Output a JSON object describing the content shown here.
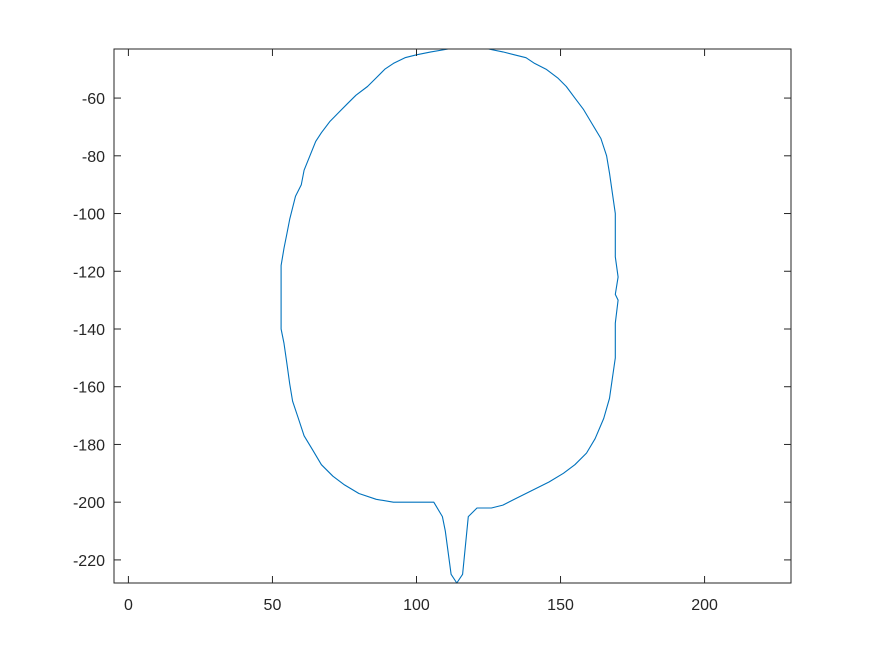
{
  "chart_data": {
    "type": "line",
    "title": "",
    "xlabel": "",
    "ylabel": "",
    "xlim": [
      -5,
      230
    ],
    "ylim": [
      -228,
      -43
    ],
    "xticks": [
      0,
      50,
      100,
      150,
      200
    ],
    "yticks": [
      -60,
      -80,
      -100,
      -120,
      -140,
      -160,
      -180,
      -200,
      -220
    ],
    "xtick_labels": [
      "0",
      "50",
      "100",
      "150",
      "200"
    ],
    "ytick_labels": [
      "-60",
      "-80",
      "-100",
      "-120",
      "-140",
      "-160",
      "-180",
      "-200",
      "-220"
    ],
    "grid": false,
    "box": true,
    "colors": {
      "line": "#0072BD",
      "axes": "#262626"
    },
    "series": [
      {
        "x": [
          111,
          105,
          100,
          96,
          92,
          89,
          86,
          83,
          79,
          76,
          73,
          70,
          67,
          65,
          63,
          61,
          60,
          58,
          57,
          56,
          55,
          54,
          53,
          53,
          53,
          54,
          55,
          56,
          57,
          59,
          61,
          64,
          67,
          71,
          75,
          80,
          86,
          92,
          99,
          106,
          109,
          110,
          112,
          114,
          116,
          118,
          121,
          126,
          130,
          134,
          140,
          146,
          151,
          155,
          159,
          162,
          165,
          167,
          168,
          169,
          169,
          169,
          170,
          169,
          170,
          169,
          169,
          169,
          168,
          167,
          166,
          164,
          161,
          158,
          155,
          152,
          149,
          145,
          141,
          138,
          134,
          130,
          125,
          121,
          117,
          114,
          111
        ],
        "y": [
          -43,
          -44,
          -45,
          -46,
          -48,
          -50,
          -53,
          -56,
          -59,
          -62,
          -65,
          -68,
          -72,
          -75,
          -80,
          -85,
          -90,
          -94,
          -98,
          -102,
          -107,
          -112,
          -118,
          -125,
          -140,
          -145,
          -152,
          -159,
          -165,
          -171,
          -177,
          -182,
          -187,
          -191,
          -194,
          -197,
          -199,
          -200,
          -200,
          -200,
          -205,
          -210,
          -225,
          -228,
          -225,
          -205,
          -202,
          -202,
          -201,
          -199,
          -196,
          -193,
          -190,
          -187,
          -183,
          -178,
          -171,
          -164,
          -157,
          -150,
          -145,
          -138,
          -130,
          -128,
          -122,
          -115,
          -108,
          -100,
          -93,
          -86,
          -80,
          -74,
          -69,
          -64,
          -60,
          -56,
          -53,
          -50,
          -48,
          -46,
          -45,
          -44,
          -43,
          -43,
          -43,
          -43,
          -43
        ]
      }
    ]
  }
}
